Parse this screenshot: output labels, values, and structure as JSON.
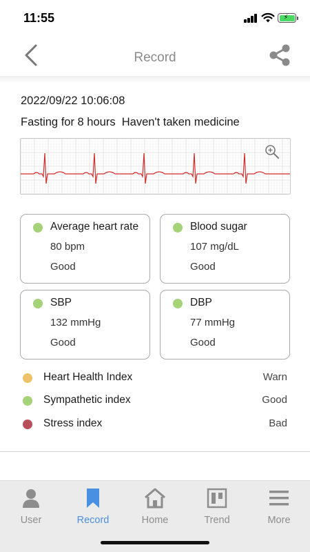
{
  "status_bar": {
    "time": "11:55"
  },
  "nav": {
    "title": "Record",
    "back_icon": "chevron-left-icon",
    "share_icon": "share-icon"
  },
  "record": {
    "datetime": "2022/09/22 10:06:08",
    "conditions": "Fasting for 8 hours  Haven't taken medicine"
  },
  "colors": {
    "good": "#a6d27a",
    "warn": "#ecc36a",
    "bad": "#b7505a",
    "accent": "#4a90e2",
    "ecg_line": "#d22a2a"
  },
  "metrics": [
    {
      "title": "Average heart rate",
      "value": "80 bpm",
      "status": "Good"
    },
    {
      "title": "Blood sugar",
      "value": "107 mg/dL",
      "status": "Good"
    },
    {
      "title": "SBP",
      "value": "132 mmHg",
      "status": "Good"
    },
    {
      "title": "DBP",
      "value": "77 mmHg",
      "status": "Good"
    }
  ],
  "indices": [
    {
      "label": "Heart Health Index",
      "status": "Warn"
    },
    {
      "label": "Sympathetic index",
      "status": "Good"
    },
    {
      "label": "Stress index",
      "status": "Bad"
    }
  ],
  "tabs": [
    {
      "label": "User",
      "icon": "user-icon"
    },
    {
      "label": "Record",
      "icon": "bookmark-icon",
      "active": true
    },
    {
      "label": "Home",
      "icon": "home-icon"
    },
    {
      "label": "Trend",
      "icon": "trend-board-icon"
    },
    {
      "label": "More",
      "icon": "menu-icon"
    }
  ]
}
